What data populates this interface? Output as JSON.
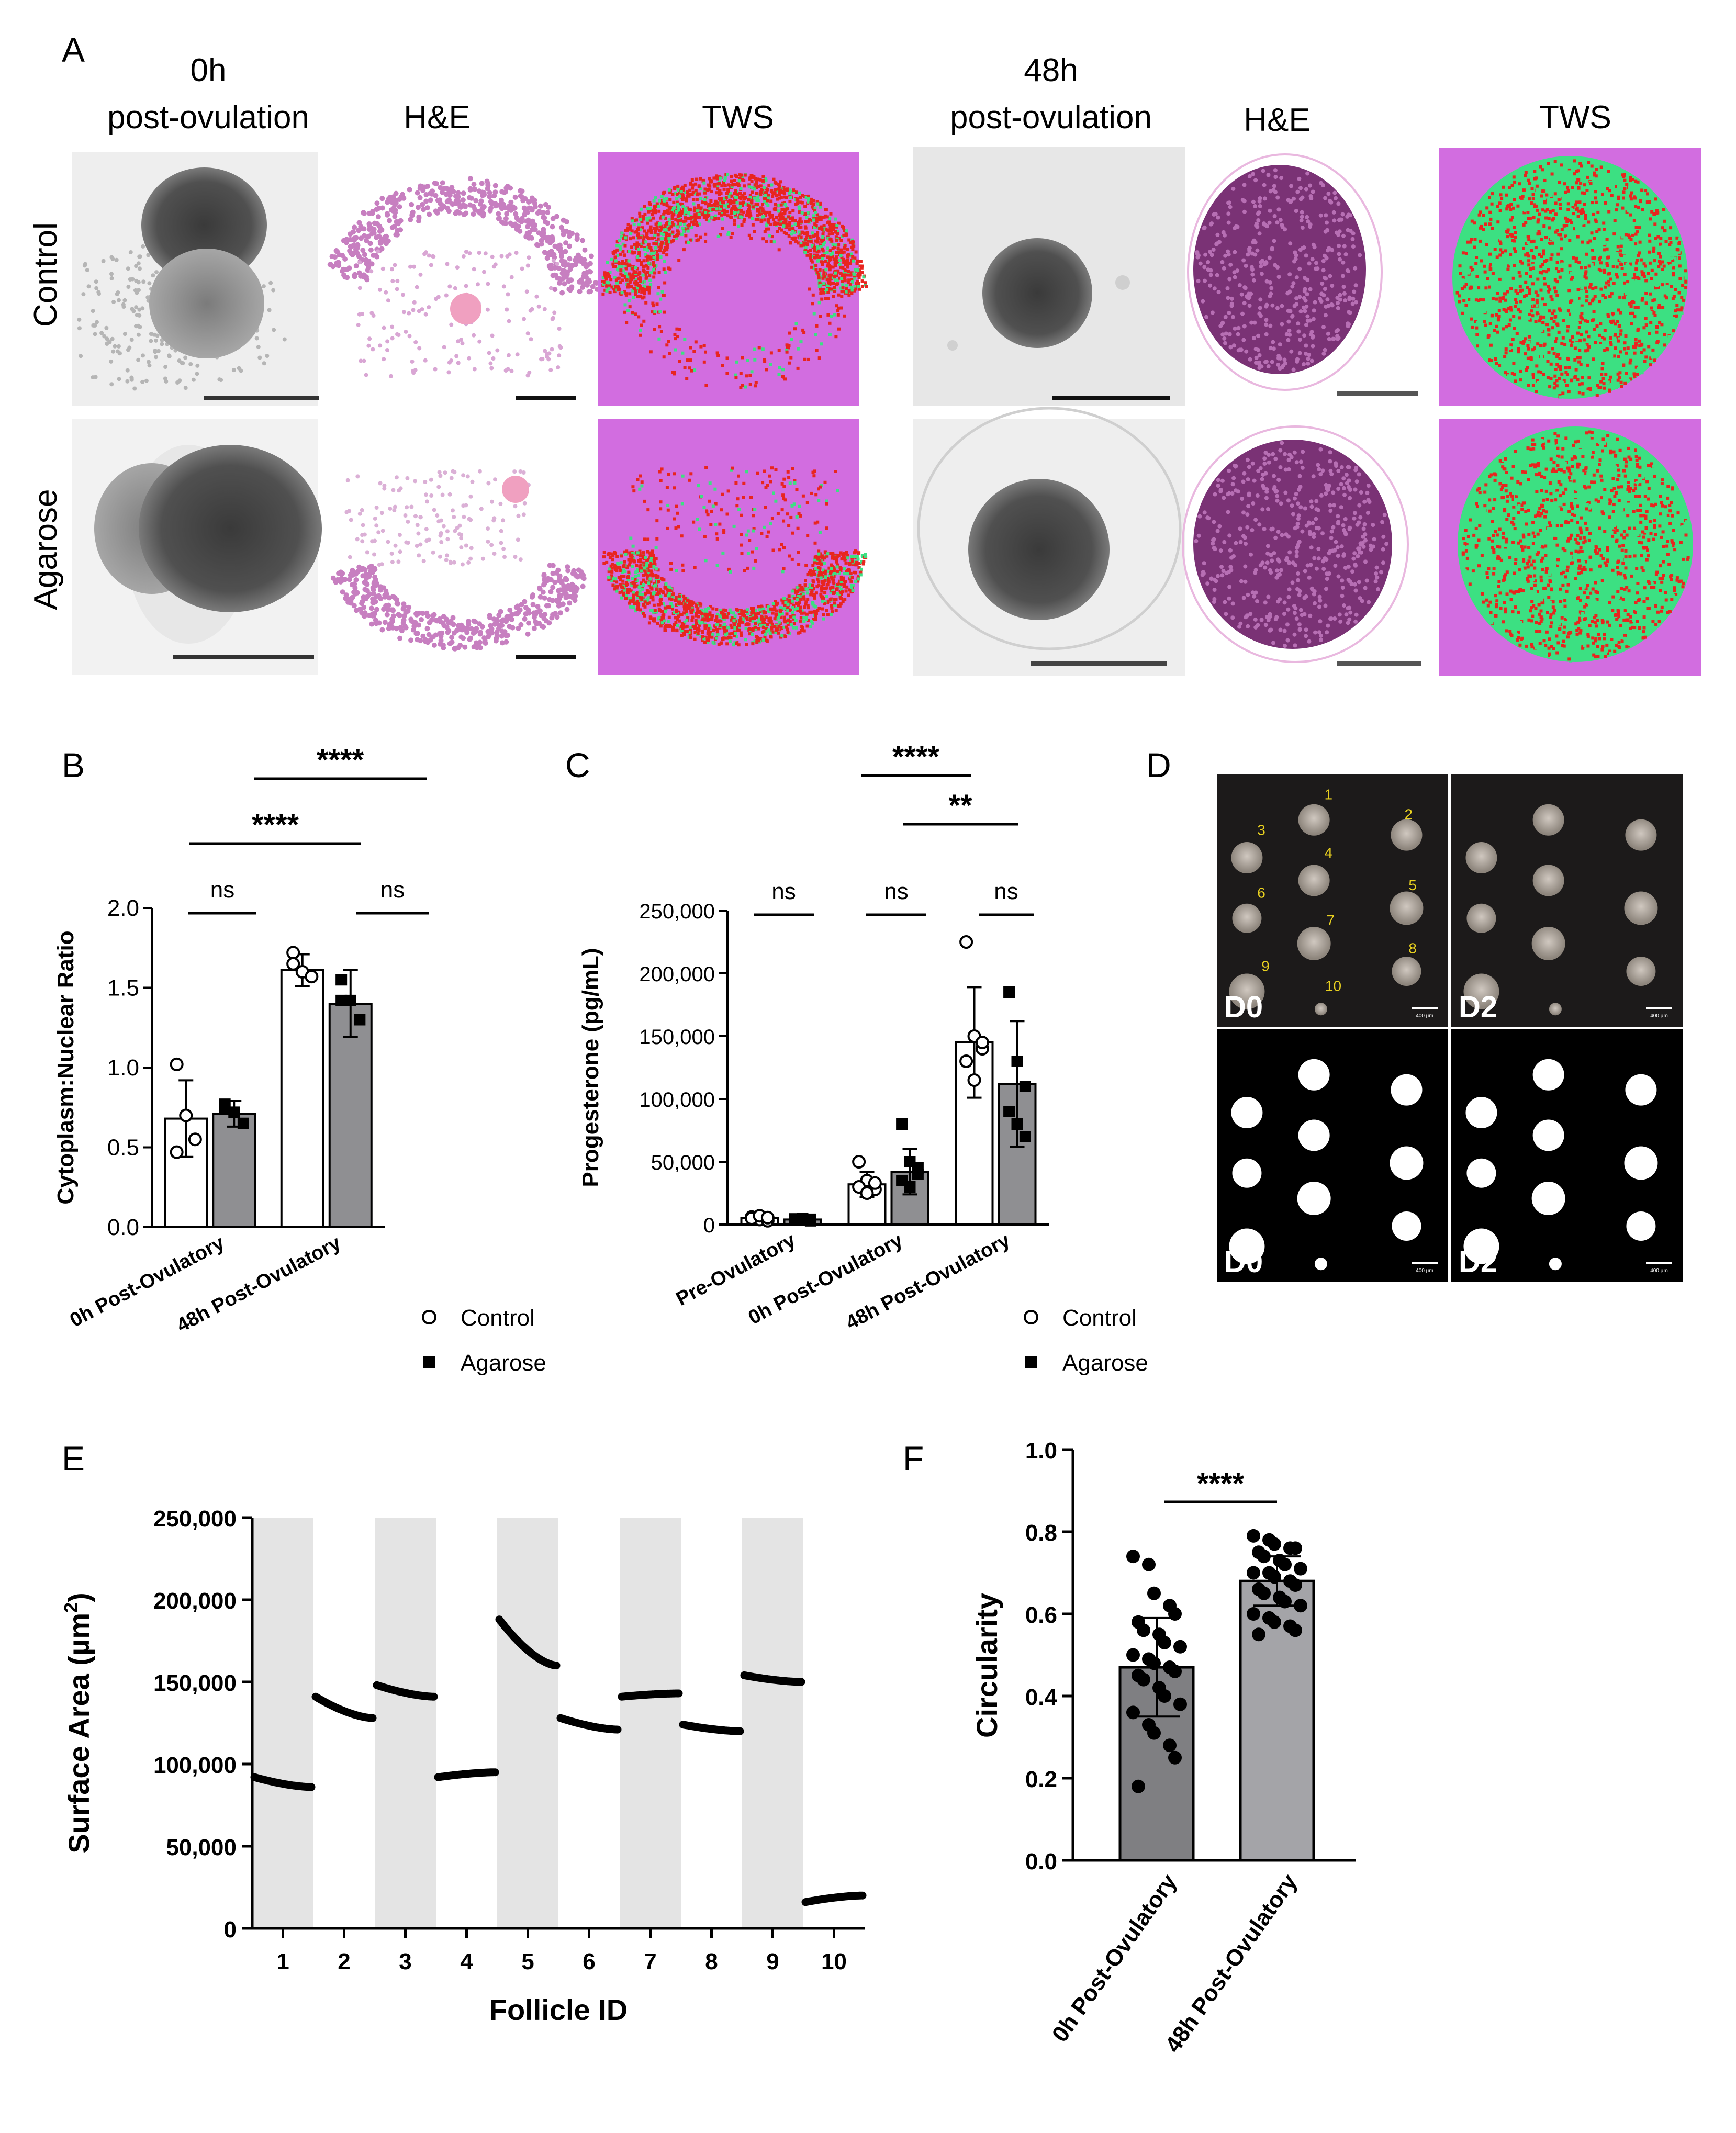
{
  "colors": {
    "tws_background": "#d26de0",
    "tws_red": "#e8251f",
    "tws_green": "#3ce082",
    "he_pink": "#c77fc0",
    "he_dark": "#6f2f6b",
    "bar_gray": "#8f8f92",
    "shade_gray": "#e4e4e4"
  },
  "panel_A": {
    "label": "A",
    "left_time": "0h",
    "left_sub": "post-ovulation",
    "right_time": "48h",
    "right_sub": "post-ovulation",
    "he": "H&E",
    "tws": "TWS",
    "row1": "Control",
    "row2": "Agarose"
  },
  "panel_D": {
    "label": "D",
    "day0": "D0",
    "day2": "D2",
    "follicle_numbers": [
      "1",
      "2",
      "3",
      "4",
      "5",
      "6",
      "7",
      "8",
      "9",
      "10"
    ],
    "scale_text": "400 µm"
  },
  "chart_data": [
    {
      "panel": "B",
      "type": "bar",
      "categories": [
        "0h Post-Ovulatory",
        "48h Post-Ovulatory"
      ],
      "ylabel": "Cytoplasm:Nuclear Ratio",
      "ylim": [
        0,
        2.0
      ],
      "yticks": [
        "0.0",
        "0.5",
        "1.0",
        "1.5",
        "2.0"
      ],
      "yticks_values": [
        0,
        0.5,
        1.0,
        1.5,
        2.0
      ],
      "series": [
        {
          "name": "Control",
          "values": [
            0.68,
            1.61
          ],
          "errors": [
            0.24,
            0.1
          ],
          "points": [
            [
              1.02,
              0.7,
              0.55,
              0.47
            ],
            [
              1.72,
              1.6,
              1.57,
              1.65
            ]
          ]
        },
        {
          "name": "Agarose",
          "values": [
            0.71,
            1.4
          ],
          "errors": [
            0.08,
            0.21
          ],
          "points": [
            [
              0.77,
              0.72,
              0.65,
              0.75
            ],
            [
              1.55,
              1.42,
              1.3,
              1.42
            ]
          ]
        }
      ],
      "significance": [
        {
          "text": "ns"
        },
        {
          "text": "ns"
        },
        {
          "text": "****"
        },
        {
          "text": "****"
        }
      ],
      "legend": [
        "Control",
        "Agarose"
      ]
    },
    {
      "panel": "C",
      "type": "bar",
      "categories": [
        "Pre-Ovulatory",
        "0h Post-Ovulatory",
        "48h Post-Ovulatory"
      ],
      "ylabel": "Progesterone (pg/mL)",
      "ylim": [
        0,
        250000
      ],
      "yticks": [
        "0",
        "50,000",
        "100,000",
        "150,000",
        "200,000",
        "250,000"
      ],
      "yticks_values": [
        0,
        50000,
        100000,
        150000,
        200000,
        250000
      ],
      "series": [
        {
          "name": "Control",
          "values": [
            5000,
            32000,
            145000
          ],
          "errors": [
            2000,
            10000,
            44000
          ],
          "points": [
            [
              6000,
              4000,
              3000,
              5000,
              7000,
              5500
            ],
            [
              50000,
              35000,
              28000,
              30000,
              25000,
              33000
            ],
            [
              225000,
              150000,
              140000,
              130000,
              115000,
              145000
            ]
          ]
        },
        {
          "name": "Agarose",
          "values": [
            4000,
            42000,
            112000
          ],
          "errors": [
            1500,
            18000,
            50000
          ],
          "points": [
            [
              4500,
              3500,
              3000,
              4000,
              5000,
              4200
            ],
            [
              80000,
              50000,
              40000,
              35000,
              30000,
              45000
            ],
            [
              185000,
              130000,
              110000,
              90000,
              80000,
              70000
            ]
          ]
        }
      ],
      "significance": [
        {
          "text": "ns"
        },
        {
          "text": "ns"
        },
        {
          "text": "ns"
        },
        {
          "text": "****"
        },
        {
          "text": "**"
        }
      ],
      "legend": [
        "Control",
        "Agarose"
      ]
    },
    {
      "panel": "E",
      "type": "scatter",
      "xlabel": "Follicle ID",
      "ylabel": "Surface Area (µm²)",
      "ylabel_main": "Surface Area (µm",
      "ylabel_sup": "2",
      "ylabel_end": ")",
      "ylim": [
        0,
        250000
      ],
      "yticks": [
        "0",
        "50,000",
        "100,000",
        "150,000",
        "200,000",
        "250,000"
      ],
      "yticks_values": [
        0,
        50000,
        100000,
        150000,
        200000,
        250000
      ],
      "categories": [
        "1",
        "2",
        "3",
        "4",
        "5",
        "6",
        "7",
        "8",
        "9",
        "10"
      ],
      "series": [
        {
          "follicle": "1",
          "start": 92000,
          "end": 86000
        },
        {
          "follicle": "2",
          "start": 141000,
          "end": 128000
        },
        {
          "follicle": "3",
          "start": 148000,
          "end": 141000
        },
        {
          "follicle": "4",
          "start": 92000,
          "end": 95000
        },
        {
          "follicle": "5",
          "start": 188000,
          "end": 160000
        },
        {
          "follicle": "6",
          "start": 128000,
          "end": 121000
        },
        {
          "follicle": "7",
          "start": 141000,
          "end": 143000
        },
        {
          "follicle": "8",
          "start": 124000,
          "end": 120000
        },
        {
          "follicle": "9",
          "start": 154000,
          "end": 150000
        },
        {
          "follicle": "10",
          "start": 16000,
          "end": 20000
        }
      ]
    },
    {
      "panel": "F",
      "type": "bar",
      "categories": [
        "0h Post-Ovulatory",
        "48h Post-Ovulatory"
      ],
      "ylabel": "Circularity",
      "ylim": [
        0,
        1.0
      ],
      "yticks": [
        "0.0",
        "0.2",
        "0.4",
        "0.6",
        "0.8",
        "1.0"
      ],
      "yticks_values": [
        0,
        0.2,
        0.4,
        0.6,
        0.8,
        1.0
      ],
      "values": [
        0.47,
        0.68
      ],
      "errors": [
        0.12,
        0.06
      ],
      "points": [
        [
          0.74,
          0.72,
          0.65,
          0.62,
          0.6,
          0.58,
          0.56,
          0.55,
          0.53,
          0.52,
          0.5,
          0.49,
          0.48,
          0.47,
          0.46,
          0.45,
          0.44,
          0.42,
          0.4,
          0.38,
          0.36,
          0.33,
          0.31,
          0.28,
          0.25,
          0.18
        ],
        [
          0.79,
          0.78,
          0.77,
          0.76,
          0.76,
          0.75,
          0.74,
          0.73,
          0.72,
          0.71,
          0.7,
          0.7,
          0.69,
          0.68,
          0.67,
          0.66,
          0.65,
          0.64,
          0.63,
          0.62,
          0.6,
          0.59,
          0.58,
          0.57,
          0.56,
          0.55
        ]
      ],
      "significance": [
        {
          "text": "****"
        }
      ]
    }
  ]
}
